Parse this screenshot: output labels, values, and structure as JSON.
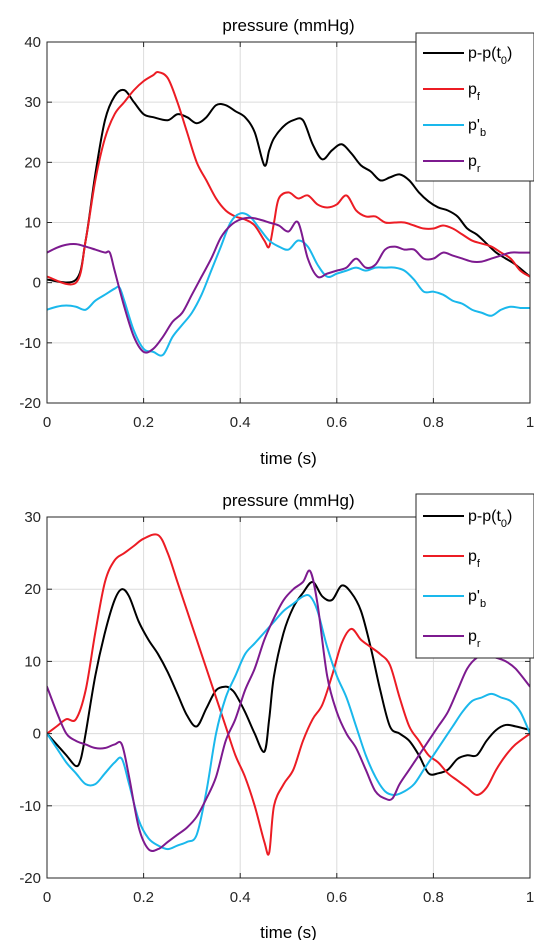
{
  "colors": {
    "p_minus_p0": "#000000",
    "pf": "#ec1c24",
    "pb": "#1ab8ec",
    "pr": "#7d1a8f",
    "grid": "#dcdcdc",
    "axis": "#262626"
  },
  "chart_data": [
    {
      "type": "line",
      "title": "pressure (mmHg)",
      "xlabel": "time (s)",
      "ylabel": "",
      "xlim": [
        0,
        1
      ],
      "ylim": [
        -20,
        40
      ],
      "xticks": [
        "0",
        "0.2",
        "0.4",
        "0.6",
        "0.8",
        "1"
      ],
      "yticks": [
        "-20",
        "-10",
        "0",
        "10",
        "20",
        "30",
        "40"
      ],
      "grid": true,
      "legend_position": "top-right",
      "series": [
        {
          "key": "p_minus_p0",
          "legend": {
            "main": "p-p(t",
            "sub": "0",
            "tail": ")"
          },
          "x": [
            0,
            0.06,
            0.08,
            0.1,
            0.12,
            0.14,
            0.16,
            0.18,
            0.2,
            0.22,
            0.25,
            0.27,
            0.29,
            0.31,
            0.33,
            0.35,
            0.37,
            0.39,
            0.41,
            0.43,
            0.45,
            0.46,
            0.47,
            0.49,
            0.51,
            0.53,
            0.55,
            0.57,
            0.59,
            0.61,
            0.63,
            0.65,
            0.67,
            0.69,
            0.71,
            0.73,
            0.75,
            0.77,
            0.79,
            0.81,
            0.83,
            0.85,
            0.87,
            0.89,
            0.91,
            0.93,
            0.95,
            0.97,
            1.0
          ],
          "y": [
            0.5,
            0.5,
            7,
            18,
            27,
            31,
            32,
            30,
            28,
            27.5,
            27,
            28,
            27.5,
            26.5,
            27.5,
            29.5,
            29.5,
            28.5,
            27.5,
            25,
            19.5,
            22,
            24,
            26,
            27,
            27,
            23,
            20.5,
            22,
            23,
            21.5,
            19.5,
            18.5,
            17,
            17.5,
            18,
            17,
            15,
            13.5,
            12.5,
            12,
            11,
            9,
            8,
            6.5,
            5,
            4,
            3,
            1
          ]
        },
        {
          "key": "pf",
          "legend": {
            "main": "p",
            "sub": "f",
            "tail": ""
          },
          "x": [
            0,
            0.06,
            0.08,
            0.1,
            0.12,
            0.14,
            0.16,
            0.18,
            0.2,
            0.22,
            0.23,
            0.25,
            0.27,
            0.29,
            0.31,
            0.33,
            0.35,
            0.37,
            0.39,
            0.41,
            0.43,
            0.45,
            0.46,
            0.47,
            0.48,
            0.5,
            0.52,
            0.54,
            0.56,
            0.58,
            0.6,
            0.62,
            0.64,
            0.66,
            0.68,
            0.7,
            0.72,
            0.74,
            0.76,
            0.78,
            0.8,
            0.82,
            0.84,
            0.86,
            0.88,
            0.9,
            0.92,
            0.94,
            0.96,
            0.98,
            1.0
          ],
          "y": [
            1,
            0,
            7,
            17,
            24,
            28,
            30,
            32,
            33.5,
            34.5,
            35,
            34,
            30,
            25,
            20,
            17,
            14,
            12,
            11,
            10.5,
            9.5,
            7,
            6,
            10,
            14,
            15,
            14,
            14.5,
            13,
            12.5,
            13,
            14.5,
            12,
            11,
            11,
            10,
            10,
            10,
            9.5,
            9,
            9,
            9.5,
            9,
            8,
            7,
            6.5,
            6,
            5,
            4,
            2,
            1
          ]
        },
        {
          "key": "pb",
          "legend": {
            "main": "p'",
            "sub": "b",
            "tail": ""
          },
          "x": [
            0,
            0.02,
            0.04,
            0.06,
            0.08,
            0.1,
            0.12,
            0.14,
            0.15,
            0.16,
            0.18,
            0.2,
            0.22,
            0.24,
            0.26,
            0.28,
            0.3,
            0.32,
            0.34,
            0.36,
            0.38,
            0.4,
            0.42,
            0.44,
            0.46,
            0.48,
            0.5,
            0.52,
            0.54,
            0.56,
            0.58,
            0.6,
            0.62,
            0.64,
            0.66,
            0.68,
            0.7,
            0.72,
            0.74,
            0.76,
            0.78,
            0.8,
            0.82,
            0.84,
            0.86,
            0.88,
            0.9,
            0.92,
            0.94,
            0.96,
            0.98,
            1.0
          ],
          "y": [
            -4.5,
            -4,
            -3.8,
            -4,
            -4.5,
            -3,
            -2,
            -1,
            -0.8,
            -3,
            -8,
            -11,
            -11.5,
            -12,
            -9,
            -7,
            -5,
            -2,
            2,
            6,
            10,
            11.5,
            11,
            9,
            7,
            6,
            5.5,
            7,
            6,
            3,
            1,
            1.5,
            2,
            2.5,
            2,
            2.5,
            2.5,
            2.5,
            2,
            0.5,
            -1.5,
            -1.5,
            -2,
            -3,
            -3.5,
            -4.5,
            -5,
            -5.5,
            -4.5,
            -4,
            -4.2,
            -4.2
          ]
        },
        {
          "key": "pr",
          "legend": {
            "main": "p",
            "sub": "r",
            "tail": ""
          },
          "x": [
            0,
            0.02,
            0.04,
            0.06,
            0.08,
            0.1,
            0.12,
            0.13,
            0.14,
            0.16,
            0.18,
            0.2,
            0.22,
            0.24,
            0.26,
            0.28,
            0.3,
            0.32,
            0.34,
            0.36,
            0.38,
            0.4,
            0.42,
            0.44,
            0.46,
            0.48,
            0.5,
            0.52,
            0.54,
            0.56,
            0.58,
            0.6,
            0.62,
            0.64,
            0.66,
            0.68,
            0.7,
            0.72,
            0.74,
            0.76,
            0.78,
            0.8,
            0.82,
            0.84,
            0.86,
            0.88,
            0.9,
            0.92,
            0.94,
            0.96,
            0.98,
            1.0
          ],
          "y": [
            5,
            5.8,
            6.3,
            6.4,
            6,
            5.5,
            5,
            5,
            2,
            -4,
            -9,
            -11.5,
            -11,
            -9,
            -6.5,
            -5,
            -2,
            1,
            4,
            7.5,
            9.5,
            10.5,
            10.8,
            10.5,
            10,
            9.5,
            8.5,
            10,
            4,
            1,
            1.5,
            2,
            2.5,
            4,
            2.5,
            3,
            5.5,
            6,
            5.5,
            5.5,
            4,
            4,
            5,
            4.5,
            4,
            3.5,
            3.5,
            4,
            4.5,
            5,
            5,
            5
          ]
        }
      ]
    },
    {
      "type": "line",
      "title": "pressure (mmHg)",
      "xlabel": "time (s)",
      "ylabel": "",
      "xlim": [
        0,
        1
      ],
      "ylim": [
        -20,
        30
      ],
      "xticks": [
        "0",
        "0.2",
        "0.4",
        "0.6",
        "0.8",
        "1"
      ],
      "yticks": [
        "-20",
        "-10",
        "0",
        "10",
        "20",
        "30"
      ],
      "grid": true,
      "legend_position": "top-right",
      "series": [
        {
          "key": "p_minus_p0",
          "legend": {
            "main": "p-p(t",
            "sub": "0",
            "tail": ")"
          },
          "x": [
            0,
            0.02,
            0.04,
            0.06,
            0.07,
            0.08,
            0.1,
            0.12,
            0.14,
            0.155,
            0.17,
            0.19,
            0.21,
            0.23,
            0.25,
            0.27,
            0.29,
            0.31,
            0.33,
            0.35,
            0.37,
            0.38,
            0.39,
            0.41,
            0.43,
            0.45,
            0.46,
            0.47,
            0.49,
            0.51,
            0.53,
            0.55,
            0.57,
            0.59,
            0.61,
            0.63,
            0.65,
            0.67,
            0.69,
            0.71,
            0.73,
            0.75,
            0.77,
            0.79,
            0.81,
            0.83,
            0.85,
            0.87,
            0.89,
            0.91,
            0.93,
            0.95,
            0.97,
            1.0
          ],
          "y": [
            0,
            -1.5,
            -3,
            -4.5,
            -3.5,
            0,
            8,
            14,
            18.5,
            20,
            19,
            15.5,
            13,
            11,
            8.5,
            5.5,
            2.5,
            1,
            3.5,
            6,
            6.5,
            6.2,
            5.5,
            3,
            0,
            -2.5,
            2,
            8,
            14,
            17.5,
            19.5,
            21,
            19,
            18.5,
            20.5,
            19.5,
            17,
            12,
            6,
            1,
            0,
            -1,
            -3,
            -5.5,
            -5.5,
            -5,
            -3.5,
            -3,
            -3,
            -1,
            0.5,
            1.2,
            1,
            0.5
          ]
        },
        {
          "key": "pf",
          "legend": {
            "main": "p",
            "sub": "f",
            "tail": ""
          },
          "x": [
            0,
            0.02,
            0.04,
            0.06,
            0.08,
            0.1,
            0.12,
            0.14,
            0.16,
            0.18,
            0.2,
            0.23,
            0.25,
            0.27,
            0.29,
            0.31,
            0.33,
            0.35,
            0.37,
            0.39,
            0.41,
            0.43,
            0.45,
            0.46,
            0.47,
            0.49,
            0.51,
            0.53,
            0.55,
            0.57,
            0.59,
            0.61,
            0.63,
            0.65,
            0.67,
            0.69,
            0.71,
            0.73,
            0.75,
            0.77,
            0.79,
            0.81,
            0.83,
            0.85,
            0.87,
            0.89,
            0.91,
            0.93,
            0.95,
            0.97,
            1.0
          ],
          "y": [
            0,
            1,
            2,
            2,
            6,
            14,
            21,
            24,
            25,
            26,
            27,
            27.5,
            25,
            21,
            17,
            13,
            9,
            5,
            1,
            -3,
            -6,
            -10,
            -15,
            -16.5,
            -10,
            -7,
            -5,
            -1,
            2,
            4,
            8,
            12.5,
            14.5,
            13,
            12,
            11,
            9.5,
            5,
            1,
            -1,
            -3,
            -4,
            -5.5,
            -6.5,
            -7.5,
            -8.5,
            -7.5,
            -5,
            -3,
            -1.5,
            0
          ]
        },
        {
          "key": "pb",
          "legend": {
            "main": "p'",
            "sub": "b",
            "tail": ""
          },
          "x": [
            0,
            0.02,
            0.04,
            0.06,
            0.08,
            0.1,
            0.12,
            0.14,
            0.155,
            0.17,
            0.19,
            0.21,
            0.23,
            0.25,
            0.27,
            0.29,
            0.31,
            0.33,
            0.35,
            0.37,
            0.39,
            0.41,
            0.43,
            0.45,
            0.47,
            0.49,
            0.51,
            0.53,
            0.545,
            0.56,
            0.58,
            0.6,
            0.62,
            0.64,
            0.66,
            0.68,
            0.7,
            0.72,
            0.74,
            0.76,
            0.78,
            0.8,
            0.82,
            0.84,
            0.86,
            0.88,
            0.9,
            0.92,
            0.94,
            0.96,
            0.98,
            1.0
          ],
          "y": [
            0,
            -2,
            -4,
            -5.5,
            -7,
            -7,
            -5.5,
            -4,
            -3.5,
            -7,
            -12,
            -14.5,
            -15.5,
            -16,
            -15.5,
            -15,
            -14,
            -8,
            0,
            5,
            8,
            11,
            12.5,
            14,
            15.5,
            17,
            18,
            19,
            19,
            17,
            12,
            8,
            5,
            1,
            -3,
            -6,
            -8,
            -8.5,
            -8,
            -7,
            -5,
            -3,
            -1,
            1,
            3,
            4.5,
            5,
            5.5,
            5,
            4.5,
            3,
            0
          ]
        },
        {
          "key": "pr",
          "legend": {
            "main": "p",
            "sub": "r",
            "tail": ""
          },
          "x": [
            0,
            0.02,
            0.04,
            0.06,
            0.08,
            0.1,
            0.12,
            0.14,
            0.155,
            0.17,
            0.19,
            0.21,
            0.23,
            0.25,
            0.27,
            0.29,
            0.31,
            0.33,
            0.35,
            0.37,
            0.39,
            0.41,
            0.43,
            0.45,
            0.47,
            0.49,
            0.51,
            0.53,
            0.545,
            0.56,
            0.58,
            0.6,
            0.62,
            0.64,
            0.66,
            0.68,
            0.7,
            0.715,
            0.73,
            0.75,
            0.77,
            0.79,
            0.81,
            0.83,
            0.85,
            0.87,
            0.89,
            0.91,
            0.93,
            0.95,
            0.97,
            1.0
          ],
          "y": [
            6.5,
            3,
            0,
            -1,
            -1.5,
            -2,
            -2,
            -1.5,
            -1.5,
            -6,
            -13,
            -16,
            -16,
            -15,
            -14,
            -13,
            -11.5,
            -9,
            -6,
            -1,
            2,
            6,
            9,
            13,
            16,
            18.5,
            20,
            21,
            22.5,
            18,
            8,
            3,
            0,
            -2,
            -5,
            -8,
            -9,
            -9,
            -7,
            -5,
            -3,
            -1,
            1,
            3,
            6,
            9,
            10.5,
            10.8,
            10.5,
            10,
            9,
            6.5
          ]
        }
      ]
    }
  ]
}
